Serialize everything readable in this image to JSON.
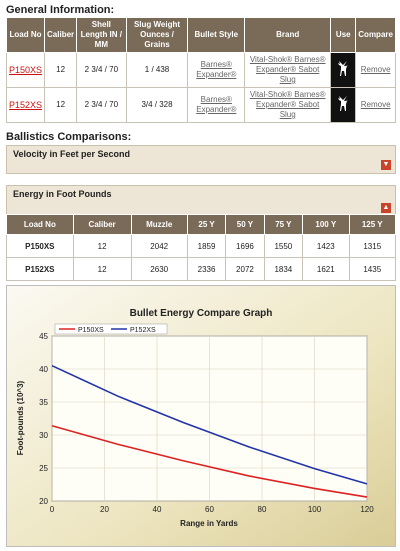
{
  "general": {
    "title": "General Information:",
    "headers": [
      "Load No",
      "Caliber",
      "Shell Length IN / MM",
      "Slug Weight Ounces / Grains",
      "Bullet Style",
      "Brand",
      "Use",
      "Compare"
    ],
    "rows": [
      {
        "load": "P150XS",
        "caliber": "12",
        "length": "2 3/4 / 70",
        "weight": "1 / 438",
        "style": "Barnes® Expander®",
        "brand": "Vital-Shok® Barnes® Expander® Sabot Slug",
        "compare": "Remove"
      },
      {
        "load": "P152XS",
        "caliber": "12",
        "length": "2 3/4 / 70",
        "weight": "3/4 / 328",
        "style": "Barnes® Expander®",
        "brand": "Vital-Shok® Barnes® Expander® Sabot Slug",
        "compare": "Remove"
      }
    ]
  },
  "ballistics": {
    "title": "Ballistics Comparisons:",
    "velocity_title": "Velocity in Feet per Second",
    "energy_title": "Energy in Foot Pounds"
  },
  "energy_table": {
    "headers": [
      "Load No",
      "Caliber",
      "Muzzle",
      "25 Y",
      "50 Y",
      "75 Y",
      "100 Y",
      "125 Y"
    ],
    "rows": [
      [
        "P150XS",
        "12",
        "2042",
        "1859",
        "1696",
        "1550",
        "1423",
        "1315"
      ],
      [
        "P152XS",
        "12",
        "2630",
        "2336",
        "2072",
        "1834",
        "1621",
        "1435"
      ]
    ]
  },
  "colors": {
    "p150": "#dd2222",
    "p152": "#2233aa",
    "header": "#7a6b58"
  },
  "chart_data": {
    "type": "line",
    "title": "Bullet Energy Compare Graph",
    "xlabel": "Range in Yards",
    "ylabel": "Foot-pounds (10^3)",
    "xlim": [
      0,
      120
    ],
    "ylim": [
      20,
      45
    ],
    "xticks": [
      0,
      20,
      40,
      60,
      80,
      100,
      120
    ],
    "yticks": [
      20,
      25,
      30,
      35,
      40,
      45
    ],
    "legend_placement": "top-left",
    "series": [
      {
        "name": "P150XS",
        "color": "#dd2222",
        "x": [
          0,
          25,
          50,
          75,
          100,
          120
        ],
        "y": [
          31.4,
          28.6,
          26.1,
          23.8,
          21.9,
          20.6
        ]
      },
      {
        "name": "P152XS",
        "color": "#2233aa",
        "x": [
          0,
          25,
          50,
          75,
          100,
          120
        ],
        "y": [
          40.5,
          35.9,
          31.9,
          28.2,
          24.9,
          22.6
        ]
      }
    ]
  }
}
